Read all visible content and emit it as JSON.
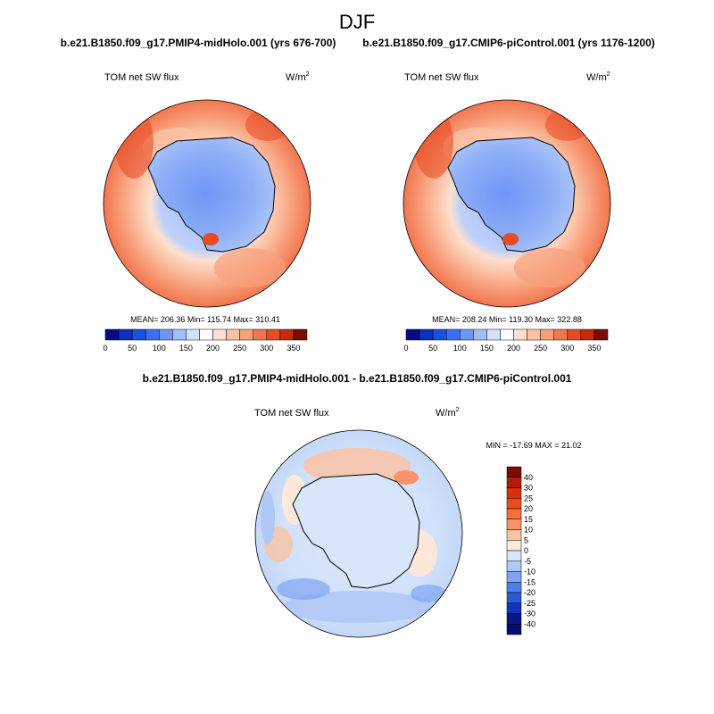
{
  "page_title": "DJF",
  "chart_data": [
    {
      "type": "heatmap",
      "projection": "south-polar-stereographic",
      "title": "b.e21.B1850.f09_g17.PMIP4-midHolo.001 (yrs 676-700)",
      "variable": "TOM net SW flux",
      "units_base": "W/m",
      "units_exp": "2",
      "stats": "MEAN= 206.36  Min= 115.74  Max= 310.41",
      "colorbar": {
        "orientation": "horizontal",
        "levels": [
          25,
          50,
          75,
          100,
          125,
          150,
          175,
          200,
          225,
          250,
          275,
          300,
          325,
          350
        ],
        "tick_labels": [
          "0",
          "50",
          "100",
          "150",
          "200",
          "250",
          "300",
          "350"
        ],
        "colors": [
          "#0a0a82",
          "#0d2fbf",
          "#1b4fe0",
          "#3d6ff0",
          "#6e96f5",
          "#a2bdf8",
          "#d3e2fb",
          "#ffffff",
          "#fde0d0",
          "#fbc2a6",
          "#f7a07b",
          "#f2764f",
          "#e84b24",
          "#c52a0a",
          "#7e0c04"
        ]
      }
    },
    {
      "type": "heatmap",
      "projection": "south-polar-stereographic",
      "title": "b.e21.B1850.f09_g17.CMIP6-piControl.001 (yrs 1176-1200)",
      "variable": "TOM net SW flux",
      "units_base": "W/m",
      "units_exp": "2",
      "stats": "MEAN= 208.24  Min= 119.30  Max= 322.88",
      "colorbar": {
        "orientation": "horizontal",
        "levels": [
          25,
          50,
          75,
          100,
          125,
          150,
          175,
          200,
          225,
          250,
          275,
          300,
          325,
          350
        ],
        "tick_labels": [
          "0",
          "50",
          "100",
          "150",
          "200",
          "250",
          "300",
          "350"
        ],
        "colors": [
          "#0a0a82",
          "#0d2fbf",
          "#1b4fe0",
          "#3d6ff0",
          "#6e96f5",
          "#a2bdf8",
          "#d3e2fb",
          "#ffffff",
          "#fde0d0",
          "#fbc2a6",
          "#f7a07b",
          "#f2764f",
          "#e84b24",
          "#c52a0a",
          "#7e0c04"
        ]
      }
    },
    {
      "type": "heatmap",
      "projection": "south-polar-stereographic",
      "title": "b.e21.B1850.f09_g17.PMIP4-midHolo.001 - b.e21.B1850.f09_g17.CMIP6-piControl.001",
      "variable": "TOM net SW flux",
      "units_base": "W/m",
      "units_exp": "2",
      "stats": "MIN = -17.69 MAX =  21.02",
      "colorbar": {
        "orientation": "vertical",
        "levels": [
          -40,
          -30,
          -25,
          -20,
          -15,
          -10,
          -5,
          0,
          5,
          10,
          15,
          20,
          25,
          30,
          40
        ],
        "tick_labels": [
          "40",
          "30",
          "25",
          "20",
          "15",
          "10",
          "5",
          "0",
          "-5",
          "-10",
          "-15",
          "-20",
          "-25",
          "-30",
          "-40"
        ],
        "colors": [
          "#7e0c04",
          "#b31d06",
          "#d8300e",
          "#ec4a22",
          "#f46e40",
          "#f7956a",
          "#fac3a4",
          "#fde8da",
          "#d8e6fa",
          "#b0c8f6",
          "#7fa4f2",
          "#4f7eea",
          "#2b5ad9",
          "#1333ba",
          "#0a1588",
          "#070b6a"
        ]
      }
    }
  ]
}
